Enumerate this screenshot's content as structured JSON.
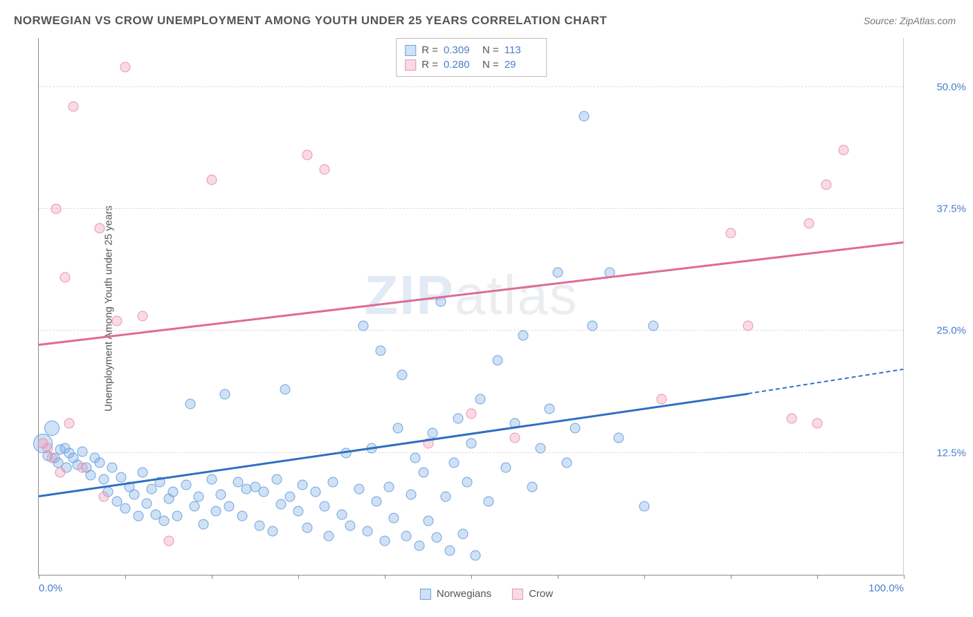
{
  "title": "NORWEGIAN VS CROW UNEMPLOYMENT AMONG YOUTH UNDER 25 YEARS CORRELATION CHART",
  "source": "Source: ZipAtlas.com",
  "ylabel": "Unemployment Among Youth under 25 years",
  "watermark": {
    "big": "ZIP",
    "rest": "atlas"
  },
  "chart": {
    "type": "scatter",
    "xlim": [
      0,
      100
    ],
    "ylim": [
      0,
      55
    ],
    "xticks": [
      0,
      10,
      20,
      30,
      40,
      50,
      60,
      70,
      80,
      90,
      100
    ],
    "xtick_labels": {
      "0": "0.0%",
      "100": "100.0%"
    },
    "yticks": [
      12.5,
      25.0,
      37.5,
      50.0
    ],
    "ytick_labels": [
      "12.5%",
      "25.0%",
      "37.5%",
      "50.0%"
    ],
    "background_color": "#ffffff",
    "grid_color": "#dddddd",
    "axis_color": "#888888",
    "label_fontsize": 15,
    "title_fontsize": 17,
    "title_color": "#555555",
    "tick_color": "#4a7ec9",
    "series": [
      {
        "name": "Norwegians",
        "fill": "rgba(120,170,230,0.35)",
        "stroke": "#6aa3de",
        "marker_size": 15,
        "line_color": "#2e6fc2",
        "line_width": 2.5,
        "R": "0.309",
        "N": "113",
        "trend": {
          "x1": 0,
          "y1": 8.0,
          "x2": 82,
          "y2": 18.5,
          "dash_to_x": 100,
          "dash_to_y": 21.0
        },
        "points": [
          {
            "x": 0.5,
            "y": 13.5,
            "r": 28
          },
          {
            "x": 1,
            "y": 12.2
          },
          {
            "x": 1.5,
            "y": 15.0,
            "r": 22
          },
          {
            "x": 1.8,
            "y": 12.0
          },
          {
            "x": 2.2,
            "y": 11.5
          },
          {
            "x": 2.5,
            "y": 12.8
          },
          {
            "x": 3,
            "y": 13.0
          },
          {
            "x": 3.2,
            "y": 11.0
          },
          {
            "x": 3.5,
            "y": 12.5
          },
          {
            "x": 4,
            "y": 12.0
          },
          {
            "x": 4.5,
            "y": 11.3
          },
          {
            "x": 5,
            "y": 12.6
          },
          {
            "x": 5.5,
            "y": 11.0
          },
          {
            "x": 6,
            "y": 10.2
          },
          {
            "x": 6.5,
            "y": 12.0
          },
          {
            "x": 7,
            "y": 11.5
          },
          {
            "x": 7.5,
            "y": 9.8
          },
          {
            "x": 8,
            "y": 8.5
          },
          {
            "x": 8.5,
            "y": 11.0
          },
          {
            "x": 9,
            "y": 7.5
          },
          {
            "x": 9.5,
            "y": 10.0
          },
          {
            "x": 10,
            "y": 6.8
          },
          {
            "x": 10.5,
            "y": 9.0
          },
          {
            "x": 11,
            "y": 8.2
          },
          {
            "x": 11.5,
            "y": 6.0
          },
          {
            "x": 12,
            "y": 10.5
          },
          {
            "x": 12.5,
            "y": 7.3
          },
          {
            "x": 13,
            "y": 8.8
          },
          {
            "x": 13.5,
            "y": 6.2
          },
          {
            "x": 14,
            "y": 9.5
          },
          {
            "x": 14.5,
            "y": 5.5
          },
          {
            "x": 15,
            "y": 7.8
          },
          {
            "x": 15.5,
            "y": 8.5
          },
          {
            "x": 16,
            "y": 6.0
          },
          {
            "x": 17,
            "y": 9.2
          },
          {
            "x": 17.5,
            "y": 17.5
          },
          {
            "x": 18,
            "y": 7.0
          },
          {
            "x": 18.5,
            "y": 8.0
          },
          {
            "x": 19,
            "y": 5.2
          },
          {
            "x": 20,
            "y": 9.8
          },
          {
            "x": 20.5,
            "y": 6.5
          },
          {
            "x": 21,
            "y": 8.2
          },
          {
            "x": 21.5,
            "y": 18.5
          },
          {
            "x": 22,
            "y": 7.0
          },
          {
            "x": 23,
            "y": 9.5
          },
          {
            "x": 23.5,
            "y": 6.0
          },
          {
            "x": 24,
            "y": 8.8
          },
          {
            "x": 25,
            "y": 9.0
          },
          {
            "x": 25.5,
            "y": 5.0
          },
          {
            "x": 26,
            "y": 8.5
          },
          {
            "x": 27,
            "y": 4.5
          },
          {
            "x": 27.5,
            "y": 9.8
          },
          {
            "x": 28,
            "y": 7.2
          },
          {
            "x": 28.5,
            "y": 19.0
          },
          {
            "x": 29,
            "y": 8.0
          },
          {
            "x": 30,
            "y": 6.5
          },
          {
            "x": 30.5,
            "y": 9.2
          },
          {
            "x": 31,
            "y": 4.8
          },
          {
            "x": 32,
            "y": 8.5
          },
          {
            "x": 33,
            "y": 7.0
          },
          {
            "x": 33.5,
            "y": 4.0
          },
          {
            "x": 34,
            "y": 9.5
          },
          {
            "x": 35,
            "y": 6.2
          },
          {
            "x": 35.5,
            "y": 12.5
          },
          {
            "x": 36,
            "y": 5.0
          },
          {
            "x": 37,
            "y": 8.8
          },
          {
            "x": 37.5,
            "y": 25.5
          },
          {
            "x": 38,
            "y": 4.5
          },
          {
            "x": 38.5,
            "y": 13.0
          },
          {
            "x": 39,
            "y": 7.5
          },
          {
            "x": 39.5,
            "y": 23.0
          },
          {
            "x": 40,
            "y": 3.5
          },
          {
            "x": 40.5,
            "y": 9.0
          },
          {
            "x": 41,
            "y": 5.8
          },
          {
            "x": 41.5,
            "y": 15.0
          },
          {
            "x": 42,
            "y": 20.5
          },
          {
            "x": 42.5,
            "y": 4.0
          },
          {
            "x": 43,
            "y": 8.2
          },
          {
            "x": 43.5,
            "y": 12.0
          },
          {
            "x": 44,
            "y": 3.0
          },
          {
            "x": 44.5,
            "y": 10.5
          },
          {
            "x": 45,
            "y": 5.5
          },
          {
            "x": 45.5,
            "y": 14.5
          },
          {
            "x": 46,
            "y": 3.8
          },
          {
            "x": 46.5,
            "y": 28.0
          },
          {
            "x": 47,
            "y": 8.0
          },
          {
            "x": 47.5,
            "y": 2.5
          },
          {
            "x": 48,
            "y": 11.5
          },
          {
            "x": 48.5,
            "y": 16.0
          },
          {
            "x": 49,
            "y": 4.2
          },
          {
            "x": 49.5,
            "y": 9.5
          },
          {
            "x": 50,
            "y": 13.5
          },
          {
            "x": 50.5,
            "y": 2.0
          },
          {
            "x": 51,
            "y": 18.0
          },
          {
            "x": 52,
            "y": 7.5
          },
          {
            "x": 53,
            "y": 22.0
          },
          {
            "x": 54,
            "y": 11.0
          },
          {
            "x": 55,
            "y": 15.5
          },
          {
            "x": 56,
            "y": 24.5
          },
          {
            "x": 57,
            "y": 9.0
          },
          {
            "x": 58,
            "y": 13.0
          },
          {
            "x": 59,
            "y": 17.0
          },
          {
            "x": 60,
            "y": 31.0
          },
          {
            "x": 61,
            "y": 11.5
          },
          {
            "x": 62,
            "y": 15.0
          },
          {
            "x": 63,
            "y": 47.0
          },
          {
            "x": 64,
            "y": 25.5
          },
          {
            "x": 66,
            "y": 31.0
          },
          {
            "x": 67,
            "y": 14.0
          },
          {
            "x": 70,
            "y": 7.0
          },
          {
            "x": 71,
            "y": 25.5
          }
        ]
      },
      {
        "name": "Crow",
        "fill": "rgba(240,150,180,0.35)",
        "stroke": "#e793b1",
        "marker_size": 15,
        "line_color": "#e06a93",
        "line_width": 2.5,
        "R": "0.280",
        "N": "29",
        "trend": {
          "x1": 0,
          "y1": 23.5,
          "x2": 100,
          "y2": 34.0
        },
        "points": [
          {
            "x": 0.5,
            "y": 13.5
          },
          {
            "x": 1,
            "y": 13.0
          },
          {
            "x": 1.5,
            "y": 12.0
          },
          {
            "x": 2,
            "y": 37.5
          },
          {
            "x": 2.5,
            "y": 10.5
          },
          {
            "x": 3,
            "y": 30.5
          },
          {
            "x": 3.5,
            "y": 15.5
          },
          {
            "x": 4,
            "y": 48.0
          },
          {
            "x": 5,
            "y": 11.0
          },
          {
            "x": 7,
            "y": 35.5
          },
          {
            "x": 7.5,
            "y": 8.0
          },
          {
            "x": 9,
            "y": 26.0
          },
          {
            "x": 10,
            "y": 52.0
          },
          {
            "x": 12,
            "y": 26.5
          },
          {
            "x": 15,
            "y": 3.5
          },
          {
            "x": 20,
            "y": 40.5
          },
          {
            "x": 31,
            "y": 43.0
          },
          {
            "x": 33,
            "y": 41.5
          },
          {
            "x": 45,
            "y": 13.5
          },
          {
            "x": 50,
            "y": 16.5
          },
          {
            "x": 55,
            "y": 14.0
          },
          {
            "x": 72,
            "y": 18.0
          },
          {
            "x": 80,
            "y": 35.0
          },
          {
            "x": 82,
            "y": 25.5
          },
          {
            "x": 87,
            "y": 16.0
          },
          {
            "x": 89,
            "y": 36.0
          },
          {
            "x": 90,
            "y": 15.5
          },
          {
            "x": 91,
            "y": 40.0
          },
          {
            "x": 93,
            "y": 43.5
          }
        ]
      }
    ]
  },
  "stats_labels": {
    "R": "R =",
    "N": "N ="
  },
  "legend": [
    {
      "label": "Norwegians",
      "fill": "rgba(120,170,230,0.5)",
      "stroke": "#6aa3de"
    },
    {
      "label": "Crow",
      "fill": "rgba(240,150,180,0.5)",
      "stroke": "#e793b1"
    }
  ]
}
